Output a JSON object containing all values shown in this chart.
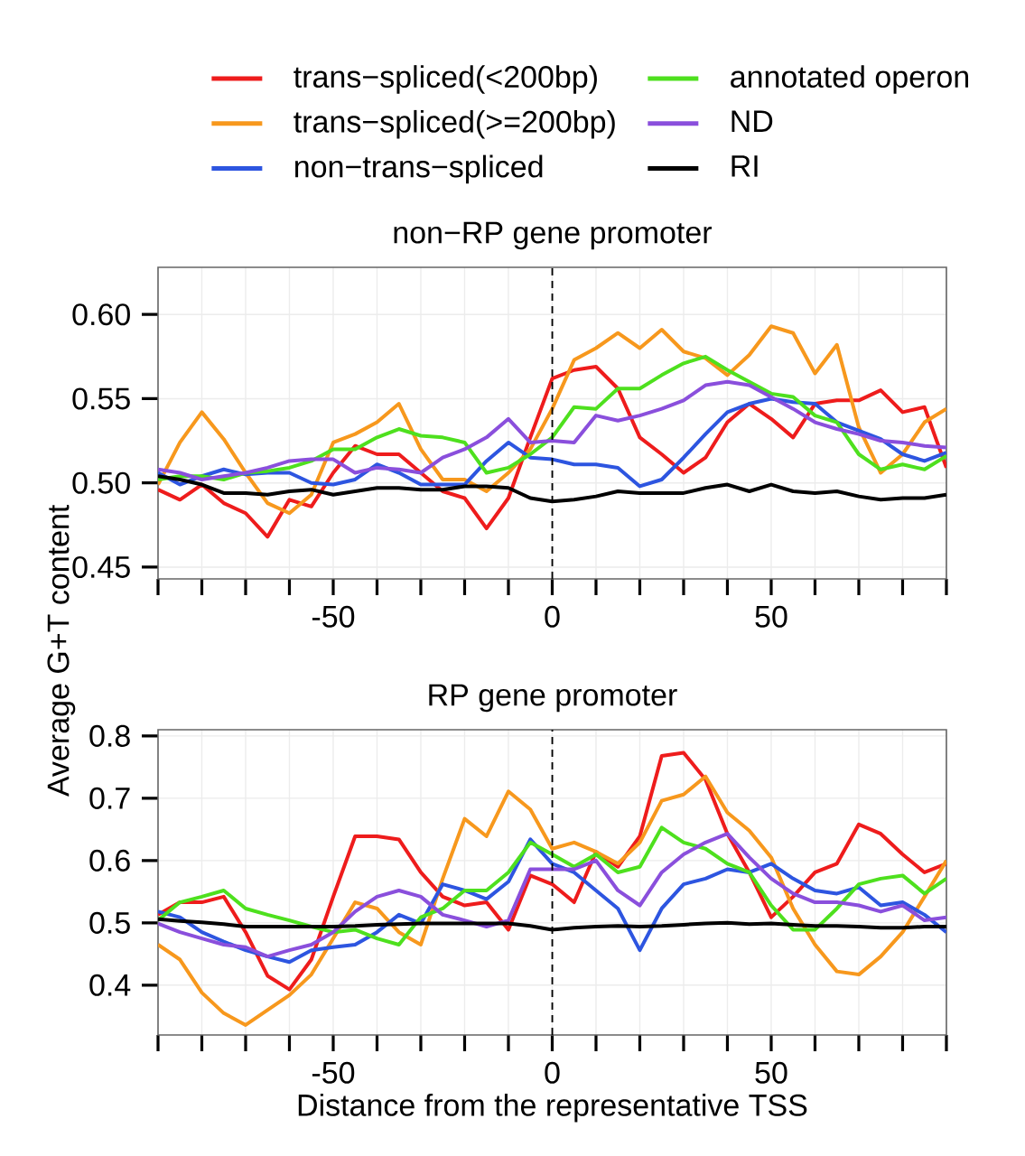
{
  "chart_data": [
    {
      "type": "line",
      "title": "non−RP gene promoter",
      "ylabel": "Average G+T content",
      "legend": "top",
      "grid": true,
      "x": [
        -90,
        -85,
        -80,
        -75,
        -70,
        -65,
        -60,
        -55,
        -50,
        -45,
        -40,
        -35,
        -30,
        -25,
        -20,
        -15,
        -10,
        -5,
        0,
        5,
        10,
        15,
        20,
        25,
        30,
        35,
        40,
        45,
        50,
        55,
        60,
        65,
        70,
        75,
        80,
        85,
        90
      ],
      "xlim": [
        -90,
        90
      ],
      "xticks": [
        {
          "value": -90,
          "label": null
        },
        {
          "value": -80,
          "label": null
        },
        {
          "value": -70,
          "label": null
        },
        {
          "value": -60,
          "label": null
        },
        -50,
        {
          "value": -40,
          "label": null
        },
        {
          "value": -30,
          "label": null
        },
        {
          "value": -20,
          "label": null
        },
        {
          "value": -10,
          "label": null
        },
        0,
        {
          "value": 10,
          "label": null
        },
        {
          "value": 20,
          "label": null
        },
        {
          "value": 30,
          "label": null
        },
        {
          "value": 40,
          "label": null
        },
        50,
        {
          "value": 60,
          "label": null
        },
        {
          "value": 70,
          "label": null
        },
        {
          "value": 80,
          "label": null
        },
        {
          "value": 90,
          "label": null
        }
      ],
      "ylim": [
        0.443,
        0.628
      ],
      "yticks": [
        0.45,
        {
          "value": 0.5,
          "label": "0.50"
        },
        0.55,
        {
          "value": 0.6,
          "label": "0.60"
        }
      ],
      "ref_lines": [
        {
          "axis": "x",
          "value": 0,
          "color": "#000000",
          "line_style": "dashed"
        }
      ],
      "series": [
        {
          "name": "trans−spliced(<200bp)",
          "color": "#ee1c1c",
          "values": [
            0.496,
            0.49,
            0.499,
            0.488,
            0.482,
            0.468,
            0.49,
            0.486,
            0.506,
            0.522,
            0.517,
            0.517,
            0.506,
            0.495,
            0.491,
            0.473,
            0.491,
            0.527,
            0.562,
            0.567,
            0.569,
            0.556,
            0.527,
            0.517,
            0.506,
            0.515,
            0.536,
            0.547,
            0.538,
            0.527,
            0.547,
            0.549,
            0.549,
            0.555,
            0.542,
            0.545,
            0.509
          ]
        },
        {
          "name": "trans−spliced(>=200bp)",
          "color": "#f7981d",
          "values": [
            0.499,
            0.524,
            0.542,
            0.526,
            0.506,
            0.488,
            0.482,
            0.493,
            0.524,
            0.529,
            0.536,
            0.547,
            0.52,
            0.502,
            0.502,
            0.495,
            0.506,
            0.52,
            0.544,
            0.573,
            0.58,
            0.589,
            0.58,
            0.591,
            0.578,
            0.574,
            0.564,
            0.576,
            0.593,
            0.589,
            0.565,
            0.582,
            0.533,
            0.506,
            0.517,
            0.536,
            0.544
          ]
        },
        {
          "name": "non−trans−spliced",
          "color": "#2d55e0",
          "values": [
            0.506,
            0.499,
            0.504,
            0.508,
            0.505,
            0.506,
            0.506,
            0.5,
            0.499,
            0.502,
            0.511,
            0.506,
            0.499,
            0.499,
            0.499,
            0.513,
            0.524,
            0.515,
            0.514,
            0.511,
            0.511,
            0.509,
            0.498,
            0.502,
            0.515,
            0.529,
            0.542,
            0.547,
            0.55,
            0.548,
            0.547,
            0.536,
            0.531,
            0.526,
            0.517,
            0.513,
            0.518
          ]
        },
        {
          "name": "annotated operon",
          "color": "#4ee01e",
          "values": [
            0.502,
            0.504,
            0.504,
            0.502,
            0.506,
            0.507,
            0.509,
            0.513,
            0.52,
            0.52,
            0.527,
            0.532,
            0.528,
            0.527,
            0.524,
            0.506,
            0.509,
            0.517,
            0.527,
            0.545,
            0.544,
            0.556,
            0.556,
            0.564,
            0.571,
            0.575,
            0.567,
            0.56,
            0.553,
            0.551,
            0.54,
            0.536,
            0.517,
            0.508,
            0.511,
            0.508,
            0.516
          ]
        },
        {
          "name": "ND",
          "color": "#8a4fdc",
          "values": [
            0.508,
            0.506,
            0.502,
            0.504,
            0.506,
            0.509,
            0.513,
            0.514,
            0.514,
            0.506,
            0.509,
            0.508,
            0.506,
            0.515,
            0.52,
            0.527,
            0.538,
            0.524,
            0.525,
            0.524,
            0.54,
            0.537,
            0.54,
            0.544,
            0.549,
            0.558,
            0.56,
            0.558,
            0.551,
            0.544,
            0.536,
            0.532,
            0.529,
            0.525,
            0.524,
            0.522,
            0.521
          ]
        },
        {
          "name": "RI",
          "color": "#000000",
          "values": [
            0.504,
            0.502,
            0.499,
            0.494,
            0.494,
            0.493,
            0.495,
            0.496,
            0.493,
            0.495,
            0.497,
            0.497,
            0.496,
            0.496,
            0.498,
            0.498,
            0.497,
            0.491,
            0.489,
            0.49,
            0.492,
            0.495,
            0.494,
            0.494,
            0.494,
            0.497,
            0.499,
            0.495,
            0.499,
            0.495,
            0.494,
            0.495,
            0.492,
            0.49,
            0.491,
            0.491,
            0.493
          ]
        }
      ]
    },
    {
      "type": "line",
      "title": "RP gene promoter",
      "xlabel": "Distance from the representative TSS",
      "grid": true,
      "x": [
        -90,
        -85,
        -80,
        -75,
        -70,
        -65,
        -60,
        -55,
        -50,
        -45,
        -40,
        -35,
        -30,
        -25,
        -20,
        -15,
        -10,
        -5,
        0,
        5,
        10,
        15,
        20,
        25,
        30,
        35,
        40,
        45,
        50,
        55,
        60,
        65,
        70,
        75,
        80,
        85,
        90
      ],
      "xlim": [
        -90,
        90
      ],
      "xticks": [
        {
          "value": -90,
          "label": null
        },
        {
          "value": -80,
          "label": null
        },
        {
          "value": -70,
          "label": null
        },
        {
          "value": -60,
          "label": null
        },
        -50,
        {
          "value": -40,
          "label": null
        },
        {
          "value": -30,
          "label": null
        },
        {
          "value": -20,
          "label": null
        },
        {
          "value": -10,
          "label": null
        },
        0,
        {
          "value": 10,
          "label": null
        },
        {
          "value": 20,
          "label": null
        },
        {
          "value": 30,
          "label": null
        },
        {
          "value": 40,
          "label": null
        },
        50,
        {
          "value": 60,
          "label": null
        },
        {
          "value": 70,
          "label": null
        },
        {
          "value": 80,
          "label": null
        },
        {
          "value": 90,
          "label": null
        }
      ],
      "ylim": [
        0.32,
        0.81
      ],
      "yticks": [
        0.4,
        0.5,
        0.6,
        0.7,
        0.8
      ],
      "ref_lines": [
        {
          "axis": "x",
          "value": 0,
          "color": "#000000",
          "line_style": "dashed"
        }
      ],
      "series": [
        {
          "color": "#ee1c1c",
          "values": [
            0.513,
            0.533,
            0.533,
            0.542,
            0.485,
            0.415,
            0.393,
            0.441,
            0.542,
            0.639,
            0.639,
            0.634,
            0.581,
            0.542,
            0.528,
            0.533,
            0.489,
            0.576,
            0.562,
            0.533,
            0.614,
            0.59,
            0.639,
            0.768,
            0.773,
            0.73,
            0.643,
            0.581,
            0.509,
            0.542,
            0.581,
            0.595,
            0.658,
            0.643,
            0.61,
            0.581,
            0.595
          ]
        },
        {
          "color": "#f7981d",
          "values": [
            0.465,
            0.441,
            0.388,
            0.355,
            0.336,
            0.36,
            0.384,
            0.417,
            0.475,
            0.533,
            0.523,
            0.485,
            0.465,
            0.571,
            0.667,
            0.639,
            0.711,
            0.682,
            0.619,
            0.629,
            0.614,
            0.595,
            0.629,
            0.696,
            0.706,
            0.735,
            0.677,
            0.648,
            0.605,
            0.523,
            0.465,
            0.422,
            0.417,
            0.446,
            0.485,
            0.542,
            0.6
          ]
        },
        {
          "color": "#2d55e0",
          "values": [
            0.518,
            0.509,
            0.485,
            0.47,
            0.456,
            0.446,
            0.437,
            0.456,
            0.461,
            0.465,
            0.485,
            0.513,
            0.499,
            0.562,
            0.552,
            0.538,
            0.566,
            0.634,
            0.595,
            0.581,
            0.552,
            0.523,
            0.456,
            0.523,
            0.562,
            0.571,
            0.586,
            0.581,
            0.595,
            0.571,
            0.552,
            0.547,
            0.557,
            0.528,
            0.533,
            0.513,
            0.485
          ]
        },
        {
          "color": "#4ee01e",
          "values": [
            0.504,
            0.533,
            0.542,
            0.552,
            0.523,
            0.513,
            0.504,
            0.494,
            0.485,
            0.489,
            0.475,
            0.465,
            0.509,
            0.523,
            0.552,
            0.552,
            0.581,
            0.629,
            0.61,
            0.59,
            0.61,
            0.581,
            0.59,
            0.653,
            0.629,
            0.619,
            0.595,
            0.581,
            0.528,
            0.489,
            0.489,
            0.523,
            0.562,
            0.571,
            0.576,
            0.547,
            0.571
          ]
        },
        {
          "color": "#8a4fdc",
          "values": [
            0.499,
            0.485,
            0.475,
            0.465,
            0.461,
            0.446,
            0.456,
            0.465,
            0.485,
            0.518,
            0.542,
            0.552,
            0.542,
            0.513,
            0.504,
            0.494,
            0.504,
            0.586,
            0.586,
            0.586,
            0.6,
            0.552,
            0.528,
            0.581,
            0.61,
            0.629,
            0.643,
            0.605,
            0.571,
            0.547,
            0.533,
            0.533,
            0.528,
            0.518,
            0.528,
            0.504,
            0.509
          ]
        },
        {
          "color": "#000000",
          "values": [
            0.506,
            0.503,
            0.501,
            0.498,
            0.494,
            0.494,
            0.494,
            0.494,
            0.494,
            0.495,
            0.497,
            0.498,
            0.499,
            0.499,
            0.499,
            0.499,
            0.499,
            0.495,
            0.489,
            0.492,
            0.494,
            0.495,
            0.494,
            0.495,
            0.497,
            0.499,
            0.5,
            0.498,
            0.499,
            0.497,
            0.495,
            0.495,
            0.494,
            0.492,
            0.492,
            0.494,
            0.494
          ]
        }
      ]
    }
  ]
}
